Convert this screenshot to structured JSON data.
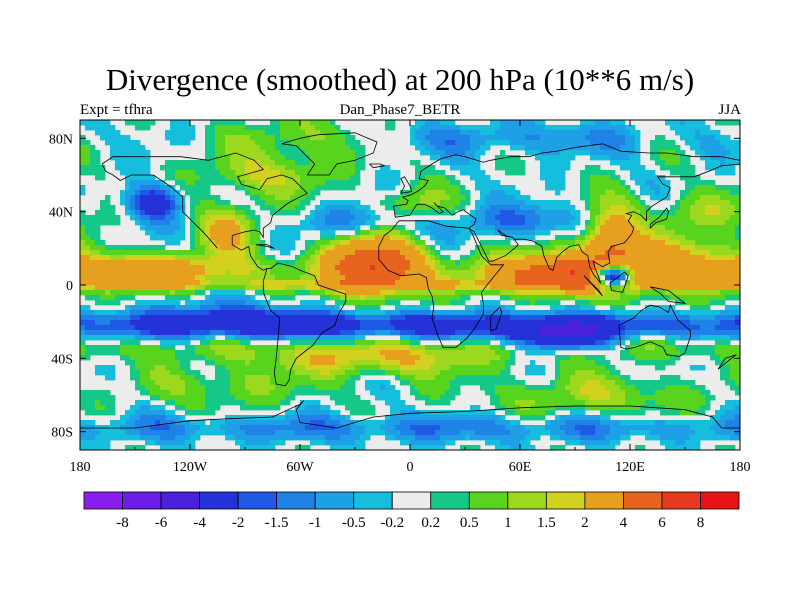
{
  "chart_data": {
    "type": "heatmap",
    "title": "Divergence (smoothed) at 200 hPa (10**6 m/s)",
    "subtitle_left": "Expt = tfhra",
    "subtitle_center": "Dan_Phase7_BETR",
    "subtitle_right": "JJA",
    "projection": "cylindrical-equidistant",
    "xlim": [
      -180,
      180
    ],
    "ylim": [
      -90,
      90
    ],
    "x_ticks": [
      -180,
      -120,
      -60,
      0,
      60,
      120,
      180
    ],
    "x_tick_labels": [
      "180",
      "120W",
      "60W",
      "0",
      "60E",
      "120E",
      "180"
    ],
    "y_ticks": [
      80,
      40,
      0,
      -40,
      -80
    ],
    "y_tick_labels": [
      "80N",
      "40N",
      "0",
      "40S",
      "80S"
    ],
    "levels": [
      "-8",
      "-6",
      "-4",
      "-2",
      "-1.5",
      "-1",
      "-0.5",
      "-0.2",
      "0.2",
      "0.5",
      "1",
      "1.5",
      "2",
      "4",
      "6",
      "8"
    ],
    "level_values": [
      -8,
      -6,
      -4,
      -2,
      -1.5,
      -1,
      -0.5,
      -0.2,
      0.2,
      0.5,
      1,
      1.5,
      2,
      4,
      6,
      8
    ],
    "colors": [
      "#8a1ef0",
      "#6a1ee8",
      "#4a22dc",
      "#2432d8",
      "#1e5ae6",
      "#1e82e6",
      "#1ea0e6",
      "#16bede",
      "#ececec",
      "#16c887",
      "#58d41e",
      "#9cd81e",
      "#d2d21e",
      "#e6a01e",
      "#e6641e",
      "#e63a1e",
      "#e61414"
    ],
    "features": [
      {
        "lon": 0,
        "lat": 0,
        "sx": 180,
        "sy": 2,
        "amp": 1.2
      },
      {
        "lon": -130,
        "lat": 8,
        "sx": 35,
        "sy": 6,
        "amp": 2.6
      },
      {
        "lon": -160,
        "lat": 6,
        "sx": 20,
        "sy": 6,
        "amp": 1.6
      },
      {
        "lon": -20,
        "lat": 10,
        "sx": 18,
        "sy": 10,
        "amp": 6.5
      },
      {
        "lon": 80,
        "lat": 6,
        "sx": 28,
        "sy": 7,
        "amp": 5.5
      },
      {
        "lon": 140,
        "lat": 10,
        "sx": 30,
        "sy": 10,
        "amp": 3.0
      },
      {
        "lon": 110,
        "lat": 25,
        "sx": 10,
        "sy": 12,
        "amp": 3.5
      },
      {
        "lon": 110,
        "lat": 5,
        "sx": 8,
        "sy": 5,
        "amp": -8.0
      },
      {
        "lon": -100,
        "lat": 30,
        "sx": 12,
        "sy": 10,
        "amp": 2.0
      },
      {
        "lon": 0,
        "lat": 45,
        "sx": 12,
        "sy": 6,
        "amp": 1.3
      },
      {
        "lon": 0,
        "lat": -22,
        "sx": 180,
        "sy": 5,
        "amp": -2.6
      },
      {
        "lon": 80,
        "lat": -28,
        "sx": 18,
        "sy": 6,
        "amp": -3.5
      },
      {
        "lon": -100,
        "lat": -18,
        "sx": 30,
        "sy": 6,
        "amp": -1.8
      },
      {
        "lon": -140,
        "lat": 45,
        "sx": 10,
        "sy": 7,
        "amp": -3.0
      },
      {
        "lon": 60,
        "lat": 35,
        "sx": 22,
        "sy": 6,
        "amp": -1.6
      },
      {
        "lon": -60,
        "lat": 80,
        "sx": 25,
        "sy": 8,
        "amp": 1.2
      },
      {
        "lon": 60,
        "lat": 80,
        "sx": 60,
        "sy": 6,
        "amp": -1.0
      },
      {
        "lon": 0,
        "lat": -35,
        "sx": 180,
        "sy": 5,
        "amp": 0.9
      },
      {
        "lon": -20,
        "lat": -42,
        "sx": 40,
        "sy": 6,
        "amp": 1.6
      },
      {
        "lon": 100,
        "lat": -60,
        "sx": 40,
        "sy": 8,
        "amp": 1.2
      },
      {
        "lon": -100,
        "lat": -55,
        "sx": 30,
        "sy": 8,
        "amp": 1.0
      },
      {
        "lon": 0,
        "lat": -78,
        "sx": 180,
        "sy": 5,
        "amp": -1.2
      },
      {
        "lon": -30,
        "lat": 35,
        "sx": 20,
        "sy": 6,
        "amp": -1.2
      },
      {
        "lon": 160,
        "lat": 40,
        "sx": 20,
        "sy": 8,
        "amp": 1.2
      },
      {
        "lon": -80,
        "lat": 60,
        "sx": 25,
        "sy": 8,
        "amp": 1.4
      }
    ],
    "coastlines": [
      [
        [
          -168,
          66
        ],
        [
          -162,
          70
        ],
        [
          -140,
          70
        ],
        [
          -125,
          70
        ],
        [
          -110,
          68
        ],
        [
          -95,
          72
        ],
        [
          -85,
          68
        ],
        [
          -80,
          63
        ],
        [
          -94,
          59
        ],
        [
          -92,
          55
        ],
        [
          -82,
          52
        ],
        [
          -78,
          58
        ],
        [
          -70,
          60
        ],
        [
          -64,
          58
        ],
        [
          -60,
          54
        ],
        [
          -56,
          50
        ],
        [
          -66,
          45
        ],
        [
          -70,
          42
        ],
        [
          -75,
          38
        ],
        [
          -76,
          34
        ],
        [
          -80,
          31
        ],
        [
          -80,
          26
        ],
        [
          -82,
          29
        ],
        [
          -85,
          30
        ],
        [
          -90,
          29
        ],
        [
          -97,
          27
        ],
        [
          -97,
          22
        ],
        [
          -92,
          19
        ],
        [
          -88,
          21
        ],
        [
          -87,
          16
        ],
        [
          -83,
          10
        ],
        [
          -80,
          8
        ],
        [
          -78,
          9
        ],
        [
          -80,
          2
        ],
        [
          -80,
          -4
        ],
        [
          -76,
          -14
        ],
        [
          -71,
          -18
        ],
        [
          -72,
          -30
        ],
        [
          -73,
          -40
        ],
        [
          -74,
          -48
        ],
        [
          -73,
          -54
        ],
        [
          -68,
          -55
        ],
        [
          -66,
          -52
        ],
        [
          -65,
          -46
        ],
        [
          -62,
          -40
        ],
        [
          -57,
          -36
        ],
        [
          -53,
          -33
        ],
        [
          -48,
          -26
        ],
        [
          -41,
          -22
        ],
        [
          -39,
          -16
        ],
        [
          -35,
          -9
        ],
        [
          -35,
          -5
        ],
        [
          -44,
          -2
        ],
        [
          -50,
          0
        ],
        [
          -52,
          5
        ],
        [
          -60,
          8
        ],
        [
          -64,
          10
        ],
        [
          -72,
          12
        ],
        [
          -76,
          9
        ],
        [
          -78,
          9
        ]
      ],
      [
        [
          -105,
          20
        ],
        [
          -112,
          28
        ],
        [
          -118,
          34
        ],
        [
          -124,
          40
        ],
        [
          -124,
          48
        ],
        [
          -131,
          54
        ],
        [
          -140,
          60
        ],
        [
          -152,
          60
        ],
        [
          -158,
          57
        ],
        [
          -162,
          60
        ],
        [
          -166,
          62
        ],
        [
          -168,
          66
        ]
      ],
      [
        [
          -56,
          60
        ],
        [
          -44,
          60
        ],
        [
          -40,
          66
        ],
        [
          -30,
          68
        ],
        [
          -20,
          72
        ],
        [
          -18,
          78
        ],
        [
          -30,
          83
        ],
        [
          -50,
          82
        ],
        [
          -60,
          80
        ],
        [
          -70,
          77
        ],
        [
          -62,
          76
        ],
        [
          -56,
          70
        ],
        [
          -52,
          66
        ],
        [
          -56,
          60
        ]
      ],
      [
        [
          -17,
          21
        ],
        [
          -17,
          14
        ],
        [
          -12,
          8
        ],
        [
          -5,
          5
        ],
        [
          5,
          6
        ],
        [
          9,
          4
        ],
        [
          10,
          -2
        ],
        [
          12,
          -6
        ],
        [
          13,
          -12
        ],
        [
          12,
          -18
        ],
        [
          15,
          -27
        ],
        [
          18,
          -34
        ],
        [
          25,
          -34
        ],
        [
          31,
          -29
        ],
        [
          35,
          -24
        ],
        [
          40,
          -16
        ],
        [
          40,
          -10
        ],
        [
          39,
          -4
        ],
        [
          42,
          0
        ],
        [
          51,
          11
        ],
        [
          44,
          11
        ],
        [
          39,
          16
        ],
        [
          34,
          28
        ],
        [
          32,
          31
        ],
        [
          20,
          32
        ],
        [
          10,
          35
        ],
        [
          0,
          35
        ],
        [
          -6,
          35
        ],
        [
          -10,
          30
        ],
        [
          -14,
          27
        ],
        [
          -17,
          21
        ]
      ],
      [
        [
          -9,
          43
        ],
        [
          -8,
          37
        ],
        [
          0,
          38
        ],
        [
          3,
          43
        ],
        [
          4,
          44
        ],
        [
          8,
          44
        ],
        [
          12,
          42
        ],
        [
          16,
          39
        ],
        [
          18,
          40
        ],
        [
          13,
          45
        ],
        [
          15,
          43
        ],
        [
          19,
          42
        ],
        [
          23,
          38
        ],
        [
          26,
          40
        ],
        [
          29,
          41
        ],
        [
          36,
          36
        ],
        [
          35,
          33
        ],
        [
          32,
          31
        ]
      ],
      [
        [
          -9,
          43
        ],
        [
          -2,
          44
        ],
        [
          -1,
          46
        ],
        [
          -4,
          48
        ],
        [
          0,
          49
        ],
        [
          4,
          51
        ],
        [
          8,
          54
        ],
        [
          10,
          57
        ],
        [
          5,
          58
        ],
        [
          6,
          62
        ],
        [
          12,
          66
        ],
        [
          17,
          69
        ],
        [
          25,
          71
        ],
        [
          30,
          70
        ],
        [
          40,
          67
        ],
        [
          44,
          68
        ],
        [
          55,
          70
        ],
        [
          65,
          70
        ],
        [
          72,
          72
        ],
        [
          80,
          73
        ],
        [
          90,
          75
        ],
        [
          105,
          77
        ],
        [
          115,
          73
        ],
        [
          130,
          72
        ],
        [
          140,
          72
        ],
        [
          155,
          70
        ],
        [
          170,
          70
        ],
        [
          180,
          68
        ]
      ],
      [
        [
          32,
          31
        ],
        [
          35,
          29
        ],
        [
          39,
          21
        ],
        [
          43,
          13
        ],
        [
          45,
          13
        ],
        [
          52,
          16
        ],
        [
          57,
          20
        ],
        [
          59,
          22
        ],
        [
          56,
          26
        ],
        [
          50,
          27
        ],
        [
          48,
          30
        ],
        [
          52,
          27
        ],
        [
          56,
          26
        ]
      ],
      [
        [
          57,
          25
        ],
        [
          62,
          25
        ],
        [
          67,
          24
        ],
        [
          72,
          21
        ],
        [
          73,
          16
        ],
        [
          76,
          9
        ],
        [
          78,
          8
        ],
        [
          80,
          15
        ],
        [
          83,
          18
        ],
        [
          87,
          21
        ],
        [
          92,
          22
        ],
        [
          94,
          18
        ],
        [
          97,
          16
        ],
        [
          98,
          10
        ],
        [
          100,
          6
        ],
        [
          104,
          1
        ],
        [
          103,
          4
        ],
        [
          101,
          9
        ],
        [
          100,
          13
        ],
        [
          105,
          10
        ],
        [
          109,
          12
        ],
        [
          108,
          18
        ],
        [
          110,
          21
        ],
        [
          117,
          23
        ],
        [
          121,
          28
        ],
        [
          122,
          31
        ],
        [
          119,
          35
        ],
        [
          121,
          38
        ],
        [
          118,
          39
        ],
        [
          122,
          40
        ],
        [
          126,
          38
        ],
        [
          129,
          35
        ],
        [
          129,
          40
        ],
        [
          132,
          43
        ],
        [
          140,
          48
        ],
        [
          142,
          53
        ],
        [
          138,
          55
        ],
        [
          135,
          59
        ],
        [
          143,
          59
        ],
        [
          155,
          59
        ],
        [
          163,
          62
        ],
        [
          170,
          65
        ],
        [
          180,
          66
        ]
      ],
      [
        [
          -5,
          50
        ],
        [
          -3,
          54
        ],
        [
          -5,
          58
        ],
        [
          -3,
          59
        ],
        [
          0,
          54
        ],
        [
          1,
          51
        ],
        [
          -5,
          50
        ]
      ],
      [
        [
          131,
          31
        ],
        [
          134,
          34
        ],
        [
          140,
          36
        ],
        [
          141,
          40
        ],
        [
          140,
          42
        ],
        [
          136,
          37
        ],
        [
          131,
          33
        ],
        [
          131,
          31
        ]
      ],
      [
        [
          114,
          -22
        ],
        [
          115,
          -34
        ],
        [
          118,
          -35
        ],
        [
          123,
          -34
        ],
        [
          131,
          -31
        ],
        [
          138,
          -34
        ],
        [
          140,
          -38
        ],
        [
          147,
          -39
        ],
        [
          150,
          -37
        ],
        [
          153,
          -28
        ],
        [
          153,
          -25
        ],
        [
          146,
          -19
        ],
        [
          142,
          -11
        ],
        [
          141,
          -15
        ],
        [
          136,
          -12
        ],
        [
          131,
          -11
        ],
        [
          126,
          -14
        ],
        [
          122,
          -18
        ],
        [
          114,
          -22
        ]
      ],
      [
        [
          44,
          -25
        ],
        [
          47,
          -24
        ],
        [
          50,
          -15
        ],
        [
          49,
          -12
        ],
        [
          44,
          -17
        ],
        [
          44,
          -25
        ]
      ],
      [
        [
          95,
          5
        ],
        [
          105,
          -6
        ],
        [
          103,
          -3
        ],
        [
          97,
          3
        ],
        [
          95,
          5
        ]
      ],
      [
        [
          109,
          1
        ],
        [
          117,
          7
        ],
        [
          119,
          5
        ],
        [
          116,
          -4
        ],
        [
          110,
          -3
        ],
        [
          109,
          1
        ]
      ],
      [
        [
          131,
          -1
        ],
        [
          141,
          -3
        ],
        [
          150,
          -10
        ],
        [
          141,
          -9
        ],
        [
          137,
          -5
        ],
        [
          131,
          -1
        ]
      ],
      [
        [
          -180,
          -78
        ],
        [
          -150,
          -78
        ],
        [
          -120,
          -74
        ],
        [
          -100,
          -73
        ],
        [
          -75,
          -72
        ],
        [
          -60,
          -65
        ],
        [
          -58,
          -63
        ],
        [
          -62,
          -68
        ],
        [
          -60,
          -75
        ],
        [
          -40,
          -78
        ],
        [
          -20,
          -72
        ],
        [
          0,
          -70
        ],
        [
          30,
          -69
        ],
        [
          60,
          -67
        ],
        [
          90,
          -66
        ],
        [
          120,
          -66
        ],
        [
          150,
          -68
        ],
        [
          165,
          -72
        ],
        [
          170,
          -78
        ],
        [
          180,
          -78
        ]
      ],
      [
        [
          -84,
          22
        ],
        [
          -78,
          22
        ],
        [
          -74,
          20
        ],
        [
          -78,
          21
        ],
        [
          -84,
          22
        ]
      ],
      [
        [
          -20,
          64
        ],
        [
          -14,
          65
        ],
        [
          -16,
          66
        ],
        [
          -22,
          66
        ],
        [
          -20,
          64
        ]
      ],
      [
        [
          172,
          -40
        ],
        [
          178,
          -38
        ],
        [
          174,
          -41
        ],
        [
          168,
          -46
        ],
        [
          172,
          -40
        ]
      ]
    ]
  }
}
